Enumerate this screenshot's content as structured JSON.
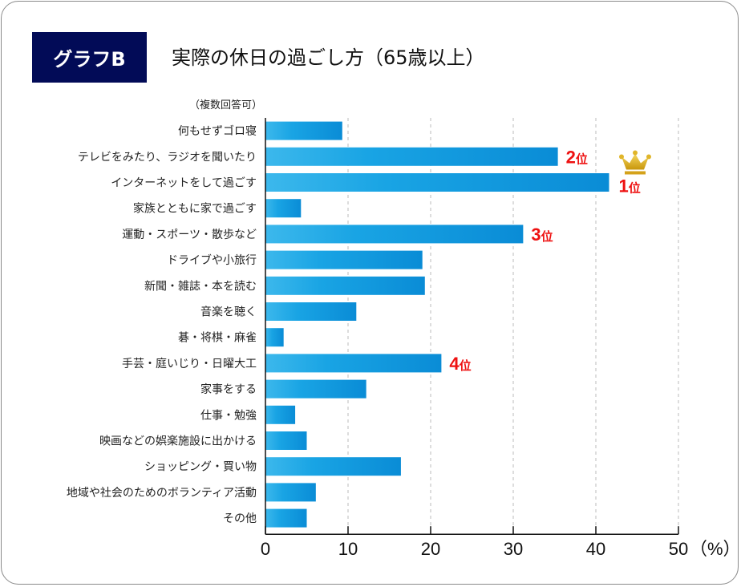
{
  "header": {
    "badge": "グラフB",
    "title": "実際の休日の過ごし方（65歳以上）",
    "note": "（複数回答可）"
  },
  "chart_data": {
    "type": "bar",
    "orientation": "horizontal",
    "categories": [
      "何もせずゴロ寝",
      "テレビをみたり、ラジオを聞いたり",
      "インターネットをして過ごす",
      "家族とともに家で過ごす",
      "運動・スポーツ・散歩など",
      "ドライブや小旅行",
      "新聞・雑誌・本を読む",
      "音楽を聴く",
      "碁・将棋・麻雀",
      "手芸・庭いじり・日曜大工",
      "家事をする",
      "仕事・勉強",
      "映画などの娯楽施設に出かける",
      "ショッピング・買い物",
      "地域や社会のためのボランティア活動",
      "その他"
    ],
    "values": [
      9.3,
      35.4,
      41.6,
      4.3,
      31.2,
      19.0,
      19.3,
      11.0,
      2.2,
      21.3,
      12.2,
      3.6,
      5.0,
      16.4,
      6.1,
      5.0
    ],
    "xlim": [
      0,
      50
    ],
    "xticks": [
      "0",
      "10",
      "20",
      "30",
      "40",
      "50"
    ],
    "xunit": "（%）",
    "grid": "vertical dashed",
    "bar_color": "#0a8fd8",
    "bar_color_light": "#3cb8ec",
    "ranks": [
      {
        "category_index": 2,
        "num": "1",
        "suffix": "位",
        "crown": true
      },
      {
        "category_index": 1,
        "num": "2",
        "suffix": "位"
      },
      {
        "category_index": 4,
        "num": "3",
        "suffix": "位"
      },
      {
        "category_index": 9,
        "num": "4",
        "suffix": "位"
      }
    ],
    "rank_color": "#ee1111"
  }
}
